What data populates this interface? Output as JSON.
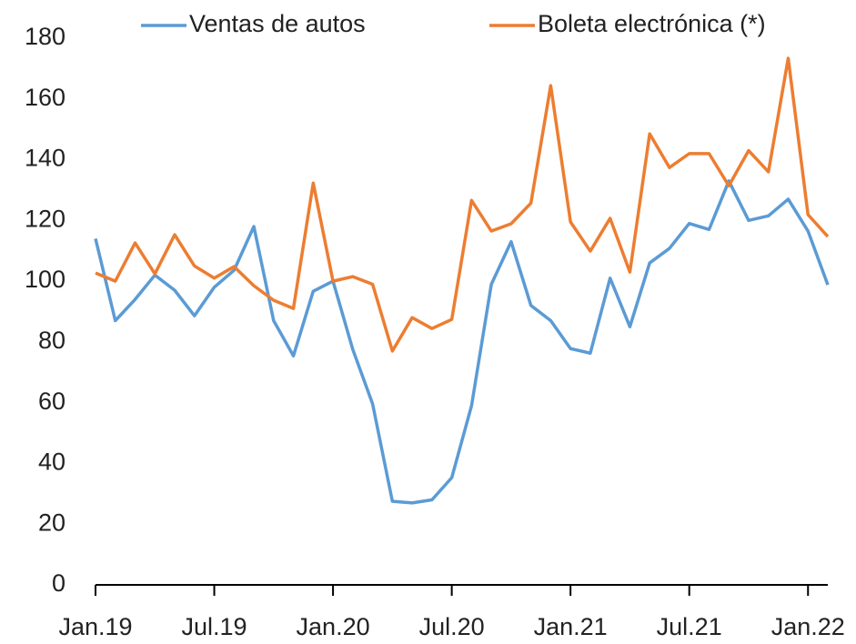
{
  "chart_data": {
    "type": "line",
    "categories": [
      "Jan.19",
      null,
      null,
      null,
      null,
      null,
      "Jul.19",
      null,
      null,
      null,
      null,
      null,
      "Jan.20",
      null,
      null,
      null,
      null,
      null,
      "Jul.20",
      null,
      null,
      null,
      null,
      null,
      "Jan.21",
      null,
      null,
      null,
      null,
      null,
      "Jul.21",
      null,
      null,
      null,
      null,
      null,
      "Jan.22",
      null
    ],
    "series": [
      {
        "name": "Ventas de autos",
        "color": "#5b9bd5",
        "values": [
          114,
          87,
          94,
          102,
          97,
          88.6,
          98,
          103.6,
          118,
          87,
          75.4,
          96.7,
          100,
          77.5,
          59.6,
          27.5,
          27,
          28,
          35.3,
          59,
          99,
          113,
          92,
          87,
          77.8,
          76.3,
          101,
          85,
          106,
          110.8,
          119,
          117,
          133,
          120,
          121.5,
          127,
          116.5,
          98.8
        ]
      },
      {
        "name": "Boleta electrónica (*)",
        "color": "#ed7d31",
        "values": [
          102.7,
          100,
          112.6,
          102.4,
          115.3,
          105,
          101,
          104.8,
          98.5,
          93.7,
          91,
          132.3,
          100,
          101.5,
          99,
          77,
          88,
          84.4,
          87.4,
          126.6,
          116.5,
          118.9,
          125.7,
          164.4,
          119.5,
          109.9,
          120.7,
          103,
          148.5,
          137.4,
          142,
          142,
          131.4,
          143,
          136,
          173.4,
          121.9,
          114.7
        ]
      }
    ],
    "ylim": [
      0,
      180
    ],
    "yticks": [
      0,
      20,
      40,
      60,
      80,
      100,
      120,
      140,
      160,
      180
    ],
    "grid": false,
    "legend": "top"
  }
}
